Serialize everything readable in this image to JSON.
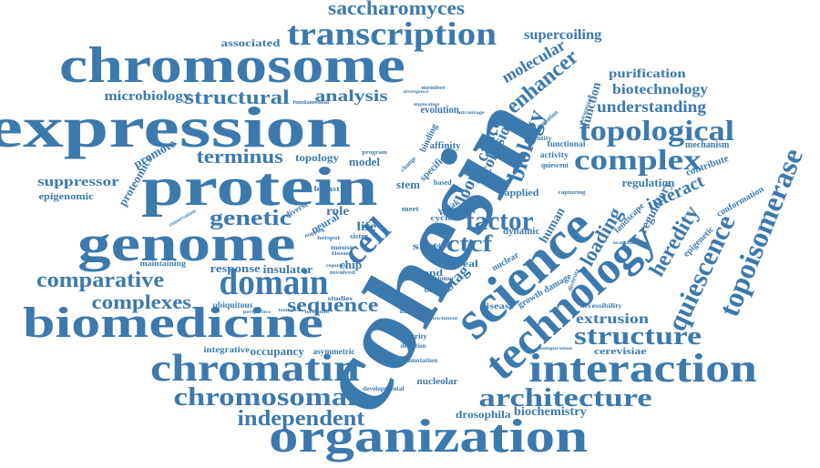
{
  "colors": {
    "word": "#3c79ad",
    "background": "#ffffff"
  },
  "words": [
    {
      "text": "cohesin"
    },
    {
      "text": "expression"
    },
    {
      "text": "chromosome"
    },
    {
      "text": "protein"
    },
    {
      "text": "genome"
    },
    {
      "text": "biomedicine"
    },
    {
      "text": "science"
    },
    {
      "text": "organization"
    },
    {
      "text": "technology"
    },
    {
      "text": "interaction"
    },
    {
      "text": "chromatin"
    },
    {
      "text": "transcription"
    },
    {
      "text": "domain"
    },
    {
      "text": "topoisomerase"
    },
    {
      "text": "topological"
    },
    {
      "text": "complex"
    },
    {
      "text": "architecture"
    },
    {
      "text": "chromosomal"
    },
    {
      "text": "structure"
    },
    {
      "text": "cell"
    },
    {
      "text": "biology"
    },
    {
      "text": "quiescence"
    },
    {
      "text": "heredity"
    },
    {
      "text": "comparative"
    },
    {
      "text": "factor"
    },
    {
      "text": "saccharomyces"
    },
    {
      "text": "independent"
    },
    {
      "text": "genetic"
    },
    {
      "text": "enhancer"
    },
    {
      "text": "loading"
    },
    {
      "text": "sequence"
    },
    {
      "text": "complexes"
    },
    {
      "text": "loop"
    },
    {
      "text": "cohesion"
    },
    {
      "text": "cancer"
    },
    {
      "text": "ctcf"
    },
    {
      "text": "structural"
    },
    {
      "text": "analysis"
    },
    {
      "text": "molecular"
    },
    {
      "text": "terminus"
    },
    {
      "text": "understanding"
    },
    {
      "text": "biotechnology"
    },
    {
      "text": "purification"
    },
    {
      "text": "supercoiling"
    },
    {
      "text": "microbiology"
    },
    {
      "text": "associated"
    },
    {
      "text": "suppressor"
    },
    {
      "text": "proteomics"
    },
    {
      "text": "epigenomic"
    },
    {
      "text": "promote"
    },
    {
      "text": "extrusion"
    },
    {
      "text": "biochemistry"
    },
    {
      "text": "drosophila"
    },
    {
      "text": "interact"
    },
    {
      "text": "regulation"
    },
    {
      "text": "regulatory"
    },
    {
      "text": "function"
    },
    {
      "text": "stag"
    },
    {
      "text": "human"
    },
    {
      "text": "cerevisiae"
    },
    {
      "text": "insulator"
    },
    {
      "text": "occupancy"
    },
    {
      "text": "response"
    },
    {
      "text": "nucleolar"
    },
    {
      "text": "topology"
    },
    {
      "text": "evolution"
    },
    {
      "text": "model"
    },
    {
      "text": "role"
    },
    {
      "text": "stem"
    },
    {
      "text": "specific"
    },
    {
      "text": "chip"
    },
    {
      "text": "neural"
    },
    {
      "text": "life"
    },
    {
      "text": "site"
    },
    {
      "text": "strand"
    },
    {
      "text": "reveal"
    },
    {
      "text": "nuclear"
    },
    {
      "text": "dynamic"
    },
    {
      "text": "applied"
    },
    {
      "text": "disease"
    },
    {
      "text": "mechanism"
    },
    {
      "text": "contribute"
    },
    {
      "text": "conformation"
    },
    {
      "text": "epigenetic"
    },
    {
      "text": "landscape"
    },
    {
      "text": "border"
    },
    {
      "text": "diverse"
    },
    {
      "text": "breast"
    },
    {
      "text": "affinity"
    },
    {
      "text": "functional"
    },
    {
      "text": "growth damage"
    },
    {
      "text": "maintaining"
    },
    {
      "text": "ubiquitous"
    },
    {
      "text": "integrative"
    },
    {
      "text": "asymmetric"
    },
    {
      "text": "integrity"
    },
    {
      "text": "detection"
    },
    {
      "text": "studies"
    },
    {
      "text": "multiple"
    },
    {
      "text": "developmental"
    },
    {
      "text": "annotation"
    },
    {
      "text": "accessibility"
    },
    {
      "text": "diversity"
    },
    {
      "text": "based"
    },
    {
      "text": "binding"
    },
    {
      "text": "sister"
    },
    {
      "text": "activity"
    },
    {
      "text": "quiescent"
    },
    {
      "text": "identity"
    },
    {
      "text": "fundamental"
    },
    {
      "text": "member"
    },
    {
      "text": "variation"
    },
    {
      "text": "bioid"
    },
    {
      "text": "capturing"
    },
    {
      "text": "localization"
    },
    {
      "text": "divergence"
    },
    {
      "text": "advantage"
    },
    {
      "text": "implication"
    },
    {
      "text": "program"
    },
    {
      "text": "characteristic"
    },
    {
      "text": "tumor"
    },
    {
      "text": "conservation"
    },
    {
      "text": "perspective"
    },
    {
      "text": "biological"
    },
    {
      "text": "formation"
    },
    {
      "text": "involved"
    },
    {
      "text": "regulator"
    },
    {
      "text": "mapping"
    },
    {
      "text": "configuration"
    },
    {
      "text": "enrichment"
    },
    {
      "text": "meet"
    },
    {
      "text": "break"
    },
    {
      "text": "type"
    },
    {
      "text": "cycle"
    },
    {
      "text": "change"
    },
    {
      "text": "mouse"
    },
    {
      "text": "hotspot"
    },
    {
      "text": "tissue"
    }
  ]
}
